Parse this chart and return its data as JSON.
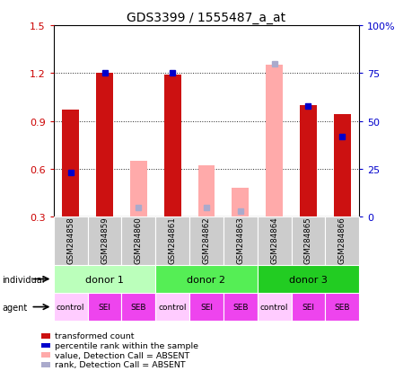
{
  "title": "GDS3399 / 1555487_a_at",
  "samples": [
    "GSM284858",
    "GSM284859",
    "GSM284860",
    "GSM284861",
    "GSM284862",
    "GSM284863",
    "GSM284864",
    "GSM284865",
    "GSM284866"
  ],
  "red_values": [
    0.97,
    1.2,
    null,
    1.19,
    null,
    null,
    null,
    1.0,
    0.94
  ],
  "pink_values": [
    null,
    null,
    0.65,
    null,
    0.62,
    0.48,
    1.25,
    null,
    null
  ],
  "blue_pct": [
    23,
    75,
    null,
    75,
    null,
    null,
    null,
    58,
    42
  ],
  "lblue_pct": [
    null,
    null,
    5,
    null,
    5,
    3,
    80,
    null,
    null
  ],
  "ylim_left": [
    0.3,
    1.5
  ],
  "ylim_right": [
    0,
    100
  ],
  "yticks_left": [
    0.3,
    0.6,
    0.9,
    1.2,
    1.5
  ],
  "yticks_right": [
    0,
    25,
    50,
    75,
    100
  ],
  "red_color": "#cc1111",
  "pink_color": "#ffaaaa",
  "blue_color": "#0000cc",
  "lblue_color": "#aaaacc",
  "bar_width": 0.5,
  "donor_groups": [
    {
      "label": "donor 1",
      "span": [
        0,
        3
      ],
      "color": "#bbffbb"
    },
    {
      "label": "donor 2",
      "span": [
        3,
        6
      ],
      "color": "#55ee55"
    },
    {
      "label": "donor 3",
      "span": [
        6,
        9
      ],
      "color": "#22cc22"
    }
  ],
  "agent_labels": [
    "control",
    "SEI",
    "SEB",
    "control",
    "SEI",
    "SEB",
    "control",
    "SEI",
    "SEB"
  ],
  "agent_colors": [
    "#ffccff",
    "#ee44ee",
    "#ee44ee",
    "#ffccff",
    "#ee44ee",
    "#ee44ee",
    "#ffccff",
    "#ee44ee",
    "#ee44ee"
  ],
  "sample_bg": "#cccccc",
  "left_color": "#cc0000",
  "right_color": "#0000cc",
  "grid_color": "#222222",
  "legend": [
    {
      "color": "#cc1111",
      "label": "transformed count"
    },
    {
      "color": "#0000cc",
      "label": "percentile rank within the sample"
    },
    {
      "color": "#ffaaaa",
      "label": "value, Detection Call = ABSENT"
    },
    {
      "color": "#aaaacc",
      "label": "rank, Detection Call = ABSENT"
    }
  ]
}
